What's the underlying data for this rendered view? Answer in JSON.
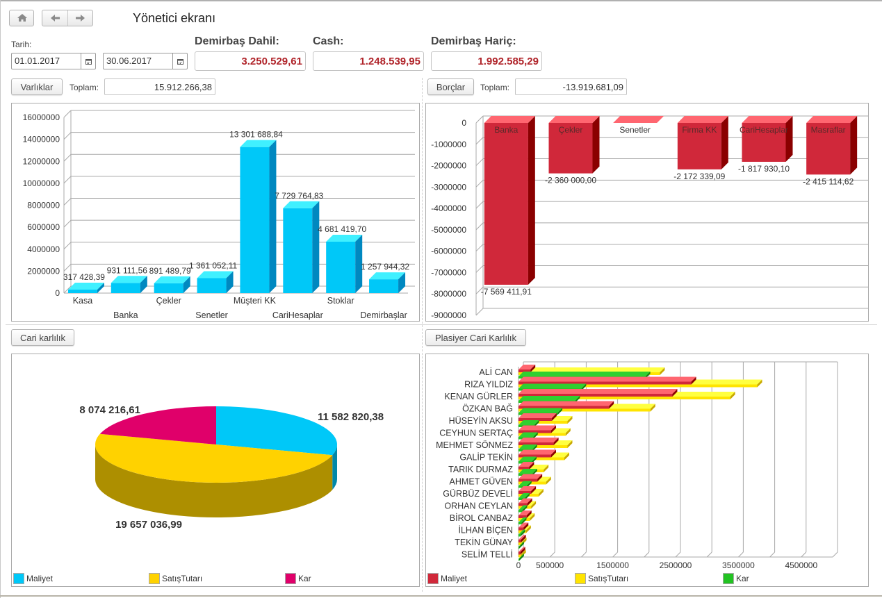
{
  "header": {
    "title": "Yönetici ekranı",
    "icons": {
      "home": "home-icon",
      "back": "arrow-left-icon",
      "forward": "arrow-right-icon"
    }
  },
  "filters": {
    "date_label": "Tarih:",
    "start_date": "01.01.2017",
    "end_date": "30.06.2017",
    "calendar_icon": "calendar-icon"
  },
  "summary": {
    "demirbas_dahil": {
      "label": "Demirbaş Dahil:",
      "value": "3.250.529,61"
    },
    "cash": {
      "label": "Cash:",
      "value": "1.248.539,95"
    },
    "demirbas_haric": {
      "label": "Demirbaş Hariç:",
      "value": "1.992.585,29"
    },
    "value_color": "#b0242a"
  },
  "assets": {
    "button_label": "Varlıklar",
    "total_label": "Toplam:",
    "total_value": "15.912.266,38"
  },
  "liabilities": {
    "button_label": "Borçlar",
    "total_label": "Toplam:",
    "total_value": "-13.919.681,09"
  },
  "cari_button_label": "Cari karlılık",
  "plasiyer_button_label": "Plasiyer Cari Karlılık",
  "chart_data": [
    {
      "id": "assets_chart",
      "type": "bar",
      "title": "",
      "categories": [
        "Kasa",
        "Banka",
        "Çekler",
        "Senetler",
        "Müşteri KK",
        "CariHesaplar",
        "Stoklar",
        "Demirbaşlar"
      ],
      "values": [
        317428.39,
        931111.56,
        891489.79,
        1361052.11,
        13301688.84,
        7729764.83,
        4681419.7,
        1257944.32
      ],
      "data_labels": [
        "317 428,39",
        "931 111,56",
        "891 489,79",
        "1 361 052,11",
        "13 301 688,84",
        "7 729 764,83",
        "4 681 419,70",
        "1 257 944,32"
      ],
      "yticks": [
        "0",
        "2000000",
        "4000000",
        "6000000",
        "8000000",
        "10000000",
        "12000000",
        "14000000",
        "16000000"
      ],
      "ylim": [
        0,
        16000000
      ],
      "grid": true,
      "color": "#00c8f8"
    },
    {
      "id": "liabilities_chart",
      "type": "bar",
      "title": "",
      "categories": [
        "Banka",
        "Çekler",
        "Senetler",
        "Firma KK",
        "CariHesaplar",
        "Masraflar"
      ],
      "values": [
        -7569411.91,
        -2360000.0,
        0,
        -2172339.09,
        -1817930.1,
        -2415114.62
      ],
      "data_labels": [
        "-7 569 411,91",
        "-2 360 000,00",
        "",
        "-2 172 339,09",
        "-1 817 930,10",
        "-2 415 114,62"
      ],
      "yticks": [
        "0",
        "-1000000",
        "-2000000",
        "-3000000",
        "-4000000",
        "-5000000",
        "-6000000",
        "-7000000",
        "-8000000",
        "-9000000"
      ],
      "ylim": [
        -9000000,
        0
      ],
      "grid": true,
      "color": "#d0283a"
    },
    {
      "id": "cari_pie",
      "type": "pie",
      "title": "",
      "labels": [
        "Maliyet",
        "SatışTutarı",
        "Kar"
      ],
      "values": [
        11582820.38,
        19657036.99,
        8074216.61
      ],
      "data_labels": [
        "11 582 820,38",
        "19 657 036,99",
        "8 074 216,61"
      ],
      "colors": [
        "#00c8f8",
        "#ffd200",
        "#e0006a"
      ],
      "legend": "bottom"
    },
    {
      "id": "plasiyer_chart",
      "type": "bar",
      "orientation": "horizontal",
      "title": "",
      "categories": [
        "ALİ CAN",
        "RIZA YILDIZ",
        "KENAN GÜRLER",
        "ÖZKAN BAĞ",
        "HÜSEYİN AKSU",
        "CEYHUN SERTAÇ",
        "MEHMET SÖNMEZ",
        "GALİP TEKİN",
        "TARIK DURMAZ",
        "AHMET GÜVEN",
        "GÜRBÜZ DEVELİ",
        "ORHAN CEYLAN",
        "BİROL CANBAZ",
        "İLHAN BİÇEN",
        "TEKİN GÜNAY",
        "SELİM TELLİ"
      ],
      "series": [
        {
          "name": "Maliyet",
          "color": "#d0283a",
          "values": [
            190000,
            2750000,
            2450000,
            1440000,
            530000,
            520000,
            560000,
            520000,
            170000,
            300000,
            200000,
            140000,
            130000,
            80000,
            40000,
            30000
          ]
        },
        {
          "name": "SatışTutarı",
          "color": "#ffe400",
          "values": [
            2250000,
            3800000,
            3370000,
            2100000,
            780000,
            750000,
            780000,
            730000,
            400000,
            440000,
            320000,
            200000,
            180000,
            120000,
            50000,
            40000
          ]
        },
        {
          "name": "Kar",
          "color": "#22c322",
          "values": [
            2020000,
            1000000,
            900000,
            620000,
            250000,
            230000,
            220000,
            210000,
            220000,
            130000,
            100000,
            60000,
            50000,
            30000,
            10000,
            10000
          ]
        }
      ],
      "xticks": [
        "0",
        "500000",
        "1500000",
        "2500000",
        "3500000",
        "4500000"
      ],
      "xlim": [
        0,
        5000000
      ],
      "grid": true,
      "legend": "bottom"
    }
  ]
}
